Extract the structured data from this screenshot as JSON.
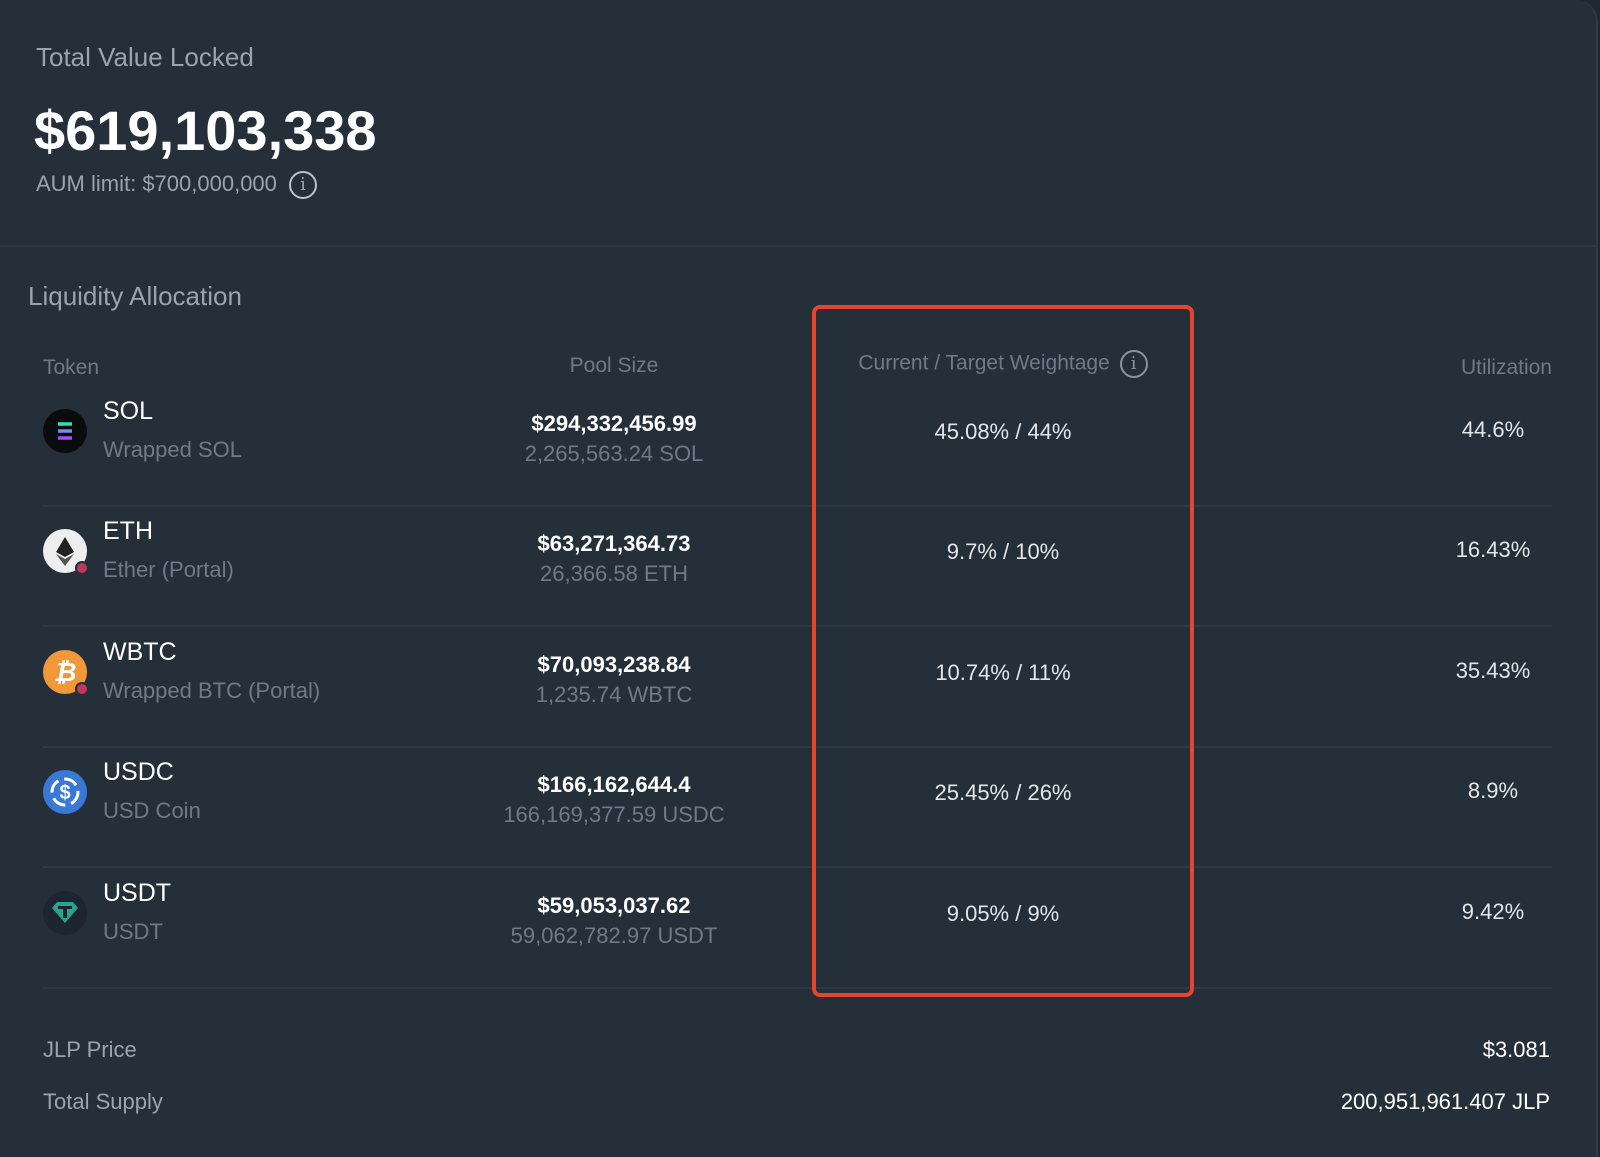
{
  "tvl": {
    "label": "Total Value Locked",
    "value": "$619,103,338",
    "aum_limit": "AUM limit: $700,000,000",
    "info_icon": "info-icon"
  },
  "allocation": {
    "title": "Liquidity Allocation",
    "headers": {
      "token": "Token",
      "pool_size": "Pool Size",
      "weightage": "Current / Target Weightage",
      "utilization": "Utilization"
    },
    "highlight_color": "#e8432d",
    "rows": [
      {
        "symbol": "SOL",
        "name": "Wrapped SOL",
        "pool_usd": "$294,332,456.99",
        "pool_tokens": "2,265,563.24 SOL",
        "weightage": "45.08% / 44%",
        "utilization": "44.6%",
        "icon": "solana-icon"
      },
      {
        "symbol": "ETH",
        "name": "Ether (Portal)",
        "pool_usd": "$63,271,364.73",
        "pool_tokens": "26,366.58 ETH",
        "weightage": "9.7% / 10%",
        "utilization": "16.43%",
        "icon": "ethereum-icon"
      },
      {
        "symbol": "WBTC",
        "name": "Wrapped BTC (Portal)",
        "pool_usd": "$70,093,238.84",
        "pool_tokens": "1,235.74 WBTC",
        "weightage": "10.74% / 11%",
        "utilization": "35.43%",
        "icon": "bitcoin-icon"
      },
      {
        "symbol": "USDC",
        "name": "USD Coin",
        "pool_usd": "$166,162,644.4",
        "pool_tokens": "166,169,377.59 USDC",
        "weightage": "25.45% / 26%",
        "utilization": "8.9%",
        "icon": "usdc-icon"
      },
      {
        "symbol": "USDT",
        "name": "USDT",
        "pool_usd": "$59,053,037.62",
        "pool_tokens": "59,062,782.97 USDT",
        "weightage": "9.05% / 9%",
        "utilization": "9.42%",
        "icon": "tether-icon"
      }
    ]
  },
  "footer": {
    "jlp_price_label": "JLP Price",
    "jlp_price": "$3.081",
    "supply_label": "Total Supply",
    "supply": "200,951,961.407 JLP"
  }
}
